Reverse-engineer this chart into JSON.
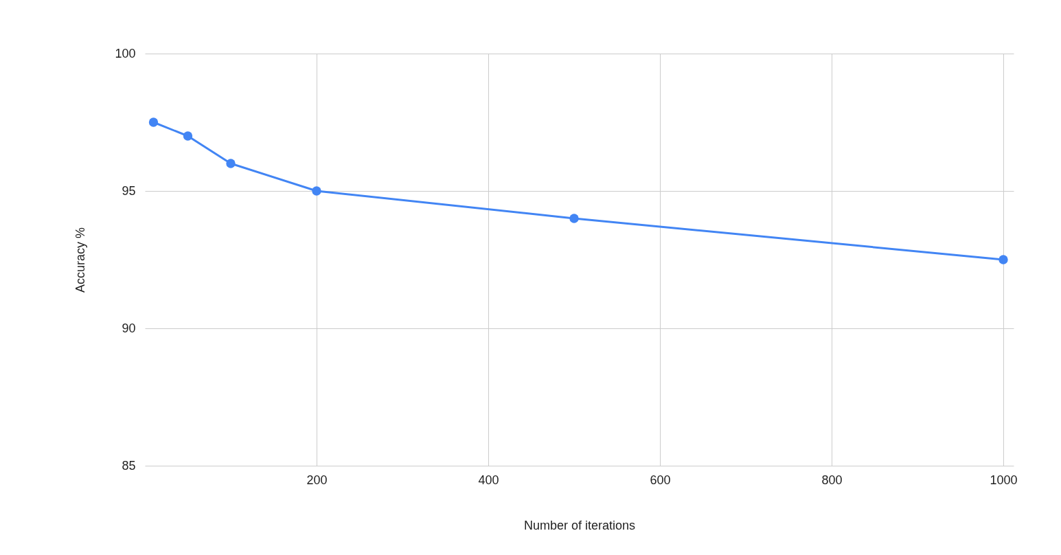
{
  "chart_data": {
    "type": "line",
    "xlabel": "Number of iterations",
    "ylabel": "Accuracy %",
    "x": [
      10,
      50,
      100,
      200,
      500,
      1000
    ],
    "series": [
      {
        "color": "#4285f4",
        "values": [
          97.5,
          97,
          96,
          95,
          94,
          92.5
        ]
      }
    ],
    "xlim": [
      0,
      1012
    ],
    "xticks": [
      200,
      400,
      600,
      800,
      1000
    ],
    "ylim": [
      85,
      100
    ],
    "yticks": [
      85,
      90,
      95,
      100
    ],
    "grid": true,
    "marker": "circle",
    "line_style": "solid"
  }
}
